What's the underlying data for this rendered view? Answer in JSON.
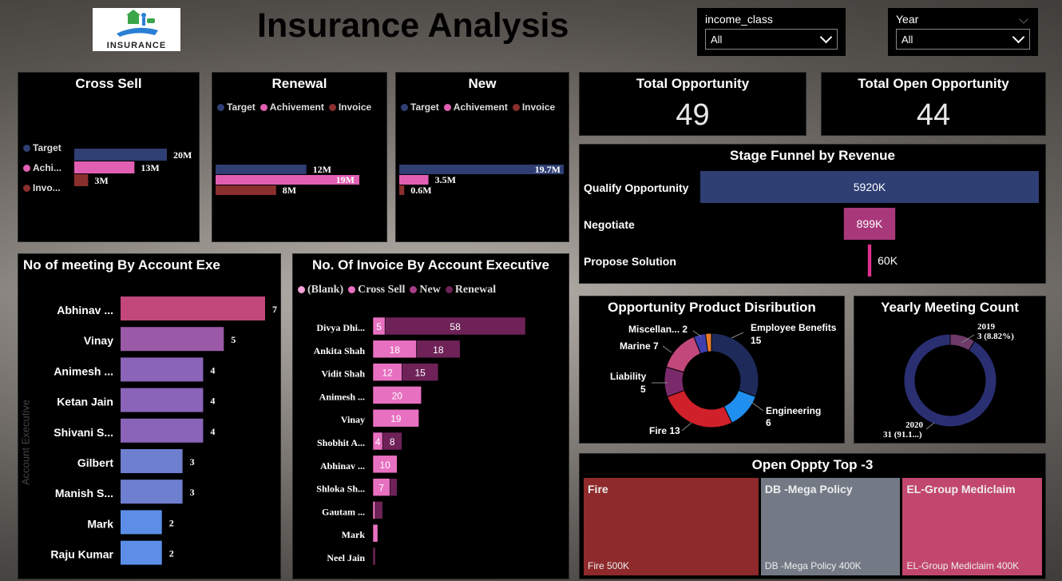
{
  "header": {
    "title": "Insurance Analysis",
    "logo_text": "INSURANCE"
  },
  "filters": [
    {
      "label": "income_class",
      "value": "All"
    },
    {
      "label": "Year",
      "value": "All"
    }
  ],
  "colors": {
    "target": "#2f3e73",
    "achievement": "#e05fb2",
    "invoice": "#8b2e2e",
    "pink": "#c2477a"
  },
  "cross_sell": {
    "title": "Cross Sell",
    "legend": [
      "Target",
      "Achi...",
      "Invo..."
    ],
    "values": [
      20,
      13,
      3
    ],
    "labels": [
      "20M",
      "13M",
      "3M"
    ],
    "max": 20
  },
  "renewal": {
    "title": "Renewal",
    "legend": [
      "Target",
      "Achivement",
      "Invoice"
    ],
    "values": [
      12,
      19,
      8
    ],
    "labels": [
      "12M",
      "19M",
      "8M"
    ],
    "max": 19
  },
  "new": {
    "title": "New",
    "legend": [
      "Target",
      "Achivement",
      "Invoice"
    ],
    "values": [
      19.7,
      3.5,
      0.6
    ],
    "labels": [
      "19.7M",
      "3.5M",
      "0.6M"
    ],
    "max": 19.7
  },
  "kpis": [
    {
      "title": "Total Opportunity",
      "value": "49"
    },
    {
      "title": "Total Open Opportunity",
      "value": "44"
    }
  ],
  "funnel": {
    "title": "Stage Funnel by Revenue",
    "stages": [
      {
        "name": "Qualify Opportunity",
        "value": 5920,
        "label": "5920K",
        "color": "#2f3e73"
      },
      {
        "name": "Negotiate",
        "value": 899,
        "label": "899K",
        "color": "#a8387a"
      },
      {
        "name": "Propose Solution",
        "value": 60,
        "label": "60K",
        "color": "#e0308f"
      }
    ]
  },
  "meetings": {
    "title": "No of meeting By Account Exe",
    "axis_label": "Account Executive",
    "rows": [
      {
        "name": "Abhinav ...",
        "value": 7,
        "color": "#c2477a"
      },
      {
        "name": "Vinay",
        "value": 5,
        "color": "#9a5aa8"
      },
      {
        "name": "Animesh ...",
        "value": 4,
        "color": "#8a64b8"
      },
      {
        "name": "Ketan Jain",
        "value": 4,
        "color": "#8a64b8"
      },
      {
        "name": "Shivani S...",
        "value": 4,
        "color": "#8a64b8"
      },
      {
        "name": "Gilbert",
        "value": 3,
        "color": "#6f7fd0"
      },
      {
        "name": "Manish S...",
        "value": 3,
        "color": "#6f7fd0"
      },
      {
        "name": "Mark",
        "value": 2,
        "color": "#5c8ee8"
      },
      {
        "name": "Raju Kumar",
        "value": 2,
        "color": "#5c8ee8"
      }
    ],
    "max": 7
  },
  "invoices": {
    "title": "No. Of Invoice By Account Executive",
    "legend": [
      {
        "name": "(Blank)",
        "color": "#f2a2d6"
      },
      {
        "name": "Cross Sell",
        "color": "#e870c0"
      },
      {
        "name": "New",
        "color": "#a83c88"
      },
      {
        "name": "Renewal",
        "color": "#6e2258"
      }
    ],
    "rows": [
      {
        "name": "Divya Dhi...",
        "segs": [
          0,
          5,
          0,
          58
        ],
        "labels": [
          "",
          "5",
          "",
          "58"
        ]
      },
      {
        "name": "Ankita Shah",
        "segs": [
          0,
          18,
          0,
          18
        ],
        "labels": [
          "",
          "18",
          "",
          "18"
        ]
      },
      {
        "name": "Vidit Shah",
        "segs": [
          0,
          12,
          0,
          15
        ],
        "labels": [
          "",
          "12",
          "",
          "15"
        ]
      },
      {
        "name": "Animesh ...",
        "segs": [
          0,
          20,
          0,
          0
        ],
        "labels": [
          "",
          "20",
          "",
          ""
        ]
      },
      {
        "name": "Vinay",
        "segs": [
          0,
          19,
          0,
          0
        ],
        "labels": [
          "",
          "19",
          "",
          ""
        ]
      },
      {
        "name": "Shobhit A...",
        "segs": [
          0,
          4,
          0,
          8
        ],
        "labels": [
          "",
          "4",
          "",
          "8"
        ]
      },
      {
        "name": "Abhinav ...",
        "segs": [
          0,
          10,
          0,
          0
        ],
        "labels": [
          "",
          "10",
          "",
          ""
        ]
      },
      {
        "name": "Shloka Sh...",
        "segs": [
          0,
          7,
          0,
          3
        ],
        "labels": [
          "",
          "7",
          "",
          ""
        ]
      },
      {
        "name": "Gautam ...",
        "segs": [
          0,
          1,
          0,
          3
        ],
        "labels": [
          "",
          "",
          "",
          ""
        ]
      },
      {
        "name": "Mark",
        "segs": [
          0,
          2,
          0,
          0
        ],
        "labels": [
          "",
          "",
          "",
          ""
        ]
      },
      {
        "name": "Neel Jain",
        "segs": [
          0,
          0,
          0,
          1
        ],
        "labels": [
          "",
          "",
          "",
          ""
        ]
      }
    ],
    "max": 63
  },
  "product_dist": {
    "title": "Opportunity Product Disribution",
    "slices": [
      {
        "name": "Employee Benefits",
        "value": 15,
        "color": "#1e2a5a"
      },
      {
        "name": "Engineering",
        "value": 6,
        "color": "#1f8ff0"
      },
      {
        "name": "Fire",
        "value": 13,
        "color": "#d0202a"
      },
      {
        "name": "Liability",
        "value": 5,
        "color": "#7a2a6a"
      },
      {
        "name": "Marine",
        "value": 7,
        "color": "#c2477a"
      },
      {
        "name": "Miscellan...",
        "value": 2,
        "color": "#3f3fb0"
      },
      {
        "name": "",
        "value": 1,
        "color": "#e87a2a"
      }
    ],
    "labels": [
      "Employee Benefits",
      "15",
      "Engineering",
      "6",
      "Fire 13",
      "Liability",
      "5",
      "Marine 7",
      "Miscellan... 2"
    ]
  },
  "yearly": {
    "title": "Yearly Meeting Count",
    "slices": [
      {
        "name": "2020",
        "value": 31,
        "color": "#2a2f72"
      },
      {
        "name": "2019",
        "value": 3,
        "color": "#6e3a6a"
      }
    ],
    "labels": [
      "2019",
      "3 (8.82%)",
      "2020",
      "31 (91.1...)"
    ]
  },
  "treemap": {
    "title": "Open Oppty Top -3",
    "items": [
      {
        "name": "Fire",
        "label": "Fire 500K",
        "value": 500,
        "color": "#8e2a2c"
      },
      {
        "name": "DB -Mega Policy",
        "label": "DB -Mega Policy 400K",
        "value": 400,
        "color": "#737a86"
      },
      {
        "name": "EL-Group Mediclaim",
        "label": "EL-Group Mediclaim 400K",
        "value": 400,
        "color": "#c2476e"
      }
    ]
  }
}
